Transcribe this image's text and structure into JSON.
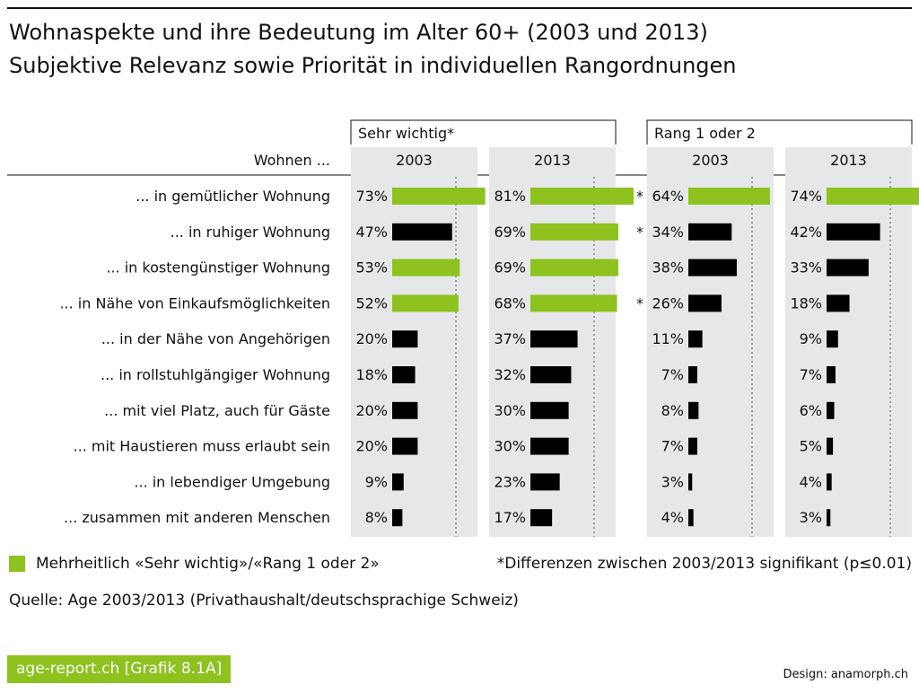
{
  "title": "Wohnaspekte und ihre Bedeutung im Alter 60+ (2003 und 2013)",
  "subtitle": "Subjektive Relevanz sowie Priorität in individuellen Rangordnungen",
  "colors": {
    "highlight": "#8dc21f",
    "bar": "#000000",
    "panel": "#e6e7e8"
  },
  "chart_data": {
    "type": "bar",
    "orientation": "horizontal",
    "row_header": "Wohnen ...",
    "categories": [
      "... in gemütlicher Wohnung",
      "... in ruhiger Wohnung",
      "... in kostengünstiger Wohnung",
      "... in Nähe von Einkaufsmöglichkeiten",
      "... in der Nähe von Angehörigen",
      "... in rollstuhlgängiger Wohnung",
      "... mit viel Platz, auch für Gäste",
      "... mit Haustieren muss erlaubt sein",
      "... in lebendiger Umgebung",
      "... zusammen mit anderen Menschen"
    ],
    "groups": [
      {
        "label": "Sehr wichtig*",
        "series": [
          {
            "name": "2003",
            "values": [
              73,
              47,
              53,
              52,
              20,
              18,
              20,
              20,
              9,
              8
            ],
            "highlight": [
              true,
              false,
              true,
              true,
              false,
              false,
              false,
              false,
              false,
              false
            ],
            "significant": [
              false,
              false,
              false,
              false,
              false,
              false,
              false,
              false,
              false,
              false
            ]
          },
          {
            "name": "2013",
            "values": [
              81,
              69,
              69,
              68,
              37,
              32,
              30,
              30,
              23,
              17
            ],
            "highlight": [
              true,
              true,
              true,
              true,
              false,
              false,
              false,
              false,
              false,
              false
            ],
            "significant": [
              false,
              false,
              false,
              false,
              false,
              false,
              false,
              false,
              false,
              false
            ]
          }
        ]
      },
      {
        "label": "Rang 1 oder 2",
        "series": [
          {
            "name": "2003",
            "values": [
              64,
              34,
              38,
              26,
              11,
              7,
              8,
              7,
              3,
              4
            ],
            "highlight": [
              true,
              false,
              false,
              false,
              false,
              false,
              false,
              false,
              false,
              false
            ],
            "significant": [
              true,
              true,
              false,
              true,
              false,
              false,
              false,
              false,
              false,
              false
            ]
          },
          {
            "name": "2013",
            "values": [
              74,
              42,
              33,
              18,
              9,
              7,
              6,
              5,
              4,
              3
            ],
            "highlight": [
              true,
              false,
              false,
              false,
              false,
              false,
              false,
              false,
              false,
              false
            ],
            "significant": [
              false,
              false,
              false,
              false,
              false,
              false,
              false,
              false,
              false,
              false
            ]
          }
        ]
      }
    ],
    "value_suffix": "%",
    "significance_marker": "*",
    "xlim": [
      0,
      100
    ],
    "reference_line": 50,
    "legend_label": "Mehrheitlich «Sehr wichtig»/«Rang 1 oder 2»",
    "note": "*Differenzen zwischen 2003/2013 signifikant (p≤0.01)"
  },
  "source": "Quelle: Age 2003/2013 (Privathaushalt/deutschsprachige Schweiz)",
  "badge": "age-report.ch [Grafik 8.1A]",
  "design": "Design: anamorph.ch"
}
